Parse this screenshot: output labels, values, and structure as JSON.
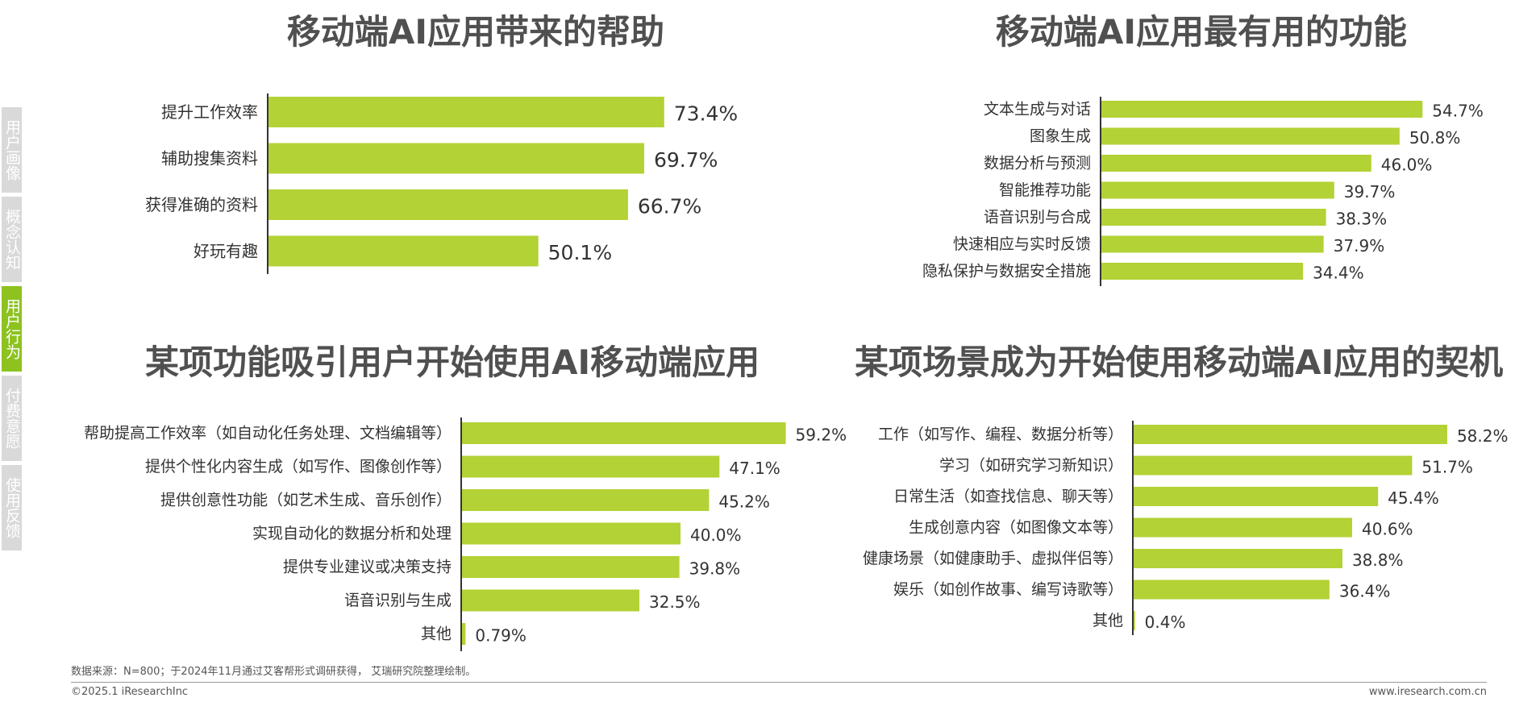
{
  "sidebar": {
    "items": [
      {
        "label": "用户画像",
        "active": false
      },
      {
        "label": "概念认知",
        "active": false
      },
      {
        "label": "用户行为",
        "active": true
      },
      {
        "label": "付费意愿",
        "active": false
      },
      {
        "label": "使用反馈",
        "active": false
      }
    ]
  },
  "colors": {
    "bar": "#b2d235",
    "axis": "#333333",
    "active_tab": "#8dc21f",
    "inactive_tab": "#d9d9d9"
  },
  "chart_data": [
    {
      "type": "bar",
      "orientation": "horizontal",
      "title": "移动端AI应用带来的帮助",
      "categories": [
        "提升工作效率",
        "辅助搜集资料",
        "获得准确的资料",
        "好玩有趣"
      ],
      "values": [
        73.4,
        69.7,
        66.7,
        50.1
      ],
      "value_labels": [
        "73.4%",
        "69.7%",
        "66.7%",
        "50.1%"
      ],
      "unit": "%",
      "xlim": [
        0,
        100
      ],
      "grid": false,
      "legend": "none"
    },
    {
      "type": "bar",
      "orientation": "horizontal",
      "title": "移动端AI应用最有用的功能",
      "categories": [
        "文本生成与对话",
        "图象生成",
        "数据分析与预测",
        "智能推荐功能",
        "语音识别与合成",
        "快速相应与实时反馈",
        "隐私保护与数据安全措施"
      ],
      "values": [
        54.7,
        50.8,
        46.0,
        39.7,
        38.3,
        37.9,
        34.4
      ],
      "value_labels": [
        "54.7%",
        "50.8%",
        "46.0%",
        "39.7%",
        "38.3%",
        "37.9%",
        "34.4%"
      ],
      "unit": "%",
      "xlim": [
        0,
        100
      ],
      "grid": false,
      "legend": "none"
    },
    {
      "type": "bar",
      "orientation": "horizontal",
      "title": "某项功能吸引用户开始使用AI移动端应用",
      "categories": [
        "帮助提高工作效率（如自动化任务处理、文档编辑等）",
        "提供个性化内容生成（如写作、图像创作等）",
        "提供创意性功能（如艺术生成、音乐创作）",
        "实现自动化的数据分析和处理",
        "提供专业建议或决策支持",
        "语音识别与生成",
        "其他"
      ],
      "values": [
        59.2,
        47.1,
        45.2,
        40.0,
        39.8,
        32.5,
        0.79
      ],
      "value_labels": [
        "59.2%",
        "47.1%",
        "45.2%",
        "40.0%",
        "39.8%",
        "32.5%",
        "0.79%"
      ],
      "unit": "%",
      "xlim": [
        0,
        100
      ],
      "grid": false,
      "legend": "none"
    },
    {
      "type": "bar",
      "orientation": "horizontal",
      "title": "某项场景成为开始使用移动端AI应用的契机",
      "categories": [
        "工作（如写作、编程、数据分析等）",
        "学习（如研究学习新知识）",
        "日常生活（如查找信息、聊天等）",
        "生成创意内容（如图像文本等）",
        "健康场景（如健康助手、虚拟伴侣等）",
        "娱乐（如创作故事、编写诗歌等）",
        "其他"
      ],
      "values": [
        58.2,
        51.7,
        45.4,
        40.6,
        38.8,
        36.4,
        0.4
      ],
      "value_labels": [
        "58.2%",
        "51.7%",
        "45.4%",
        "40.6%",
        "38.8%",
        "36.4%",
        "0.4%"
      ],
      "unit": "%",
      "xlim": [
        0,
        100
      ],
      "grid": false,
      "legend": "none"
    }
  ],
  "footer": {
    "source": "数据来源：N=800；于2024年11月通过艾客帮形式调研获得， 艾瑞研究院整理绘制。",
    "copyright": "©2025.1 iResearchInc",
    "website": "www.iresearch.com.cn"
  }
}
